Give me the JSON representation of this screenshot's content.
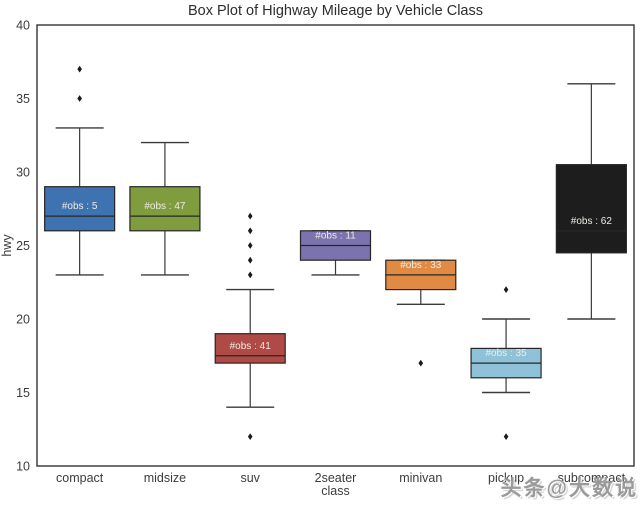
{
  "title": "Box Plot of Highway Mileage by Vehicle Class",
  "watermark": "头条@大数说",
  "colors": {
    "frame": "#333333",
    "whisker": "#3a3a3a",
    "box_edge": "#262626",
    "outlier": "#1a1a1a",
    "tick_text": "#3c3c3c",
    "obs_text": "#efece2"
  },
  "chart_data": {
    "type": "box",
    "title": "Box Plot of Highway Mileage by Vehicle Class",
    "xlabel": "class",
    "ylabel": "hwy",
    "ylim": [
      10,
      40
    ],
    "yticks": [
      10,
      15,
      20,
      25,
      30,
      35,
      40
    ],
    "grid": false,
    "legend": "none",
    "categories": [
      "compact",
      "midsize",
      "suv",
      "2seater",
      "minivan",
      "pickup",
      "subcompact"
    ],
    "series": [
      {
        "category": "compact",
        "label": "#obs : 5",
        "color": "#3e72b1",
        "whisker_low": 23,
        "q1": 26,
        "median": 27,
        "q3": 29,
        "whisker_high": 33,
        "outliers": [
          35,
          37
        ]
      },
      {
        "category": "midsize",
        "label": "#obs : 47",
        "color": "#7f9d3f",
        "whisker_low": 23,
        "q1": 26,
        "median": 27,
        "q3": 29,
        "whisker_high": 32,
        "outliers": []
      },
      {
        "category": "suv",
        "label": "#obs : 41",
        "color": "#b04a47",
        "whisker_low": 14,
        "q1": 17,
        "median": 17.5,
        "q3": 19,
        "whisker_high": 22,
        "outliers": [
          23,
          24,
          25,
          26,
          27,
          12
        ]
      },
      {
        "category": "2seater",
        "label": "#obs : 11",
        "color": "#7a73ae",
        "whisker_low": 23,
        "q1": 24,
        "median": 25,
        "q3": 26,
        "whisker_high": 26,
        "outliers": []
      },
      {
        "category": "minivan",
        "label": "#obs : 33",
        "color": "#e18a43",
        "whisker_low": 21,
        "q1": 22,
        "median": 23,
        "q3": 24,
        "whisker_high": 24,
        "outliers": [
          17
        ]
      },
      {
        "category": "pickup",
        "label": "#obs : 35",
        "color": "#8fc2d9",
        "whisker_low": 15,
        "q1": 16,
        "median": 17,
        "q3": 18,
        "whisker_high": 20,
        "outliers": [
          22,
          12
        ]
      },
      {
        "category": "subcompact",
        "label": "#obs : 62",
        "color": "#1d1d1d",
        "whisker_low": 20,
        "q1": 24.5,
        "median": 26,
        "q3": 30.5,
        "whisker_high": 36,
        "outliers": []
      }
    ]
  }
}
